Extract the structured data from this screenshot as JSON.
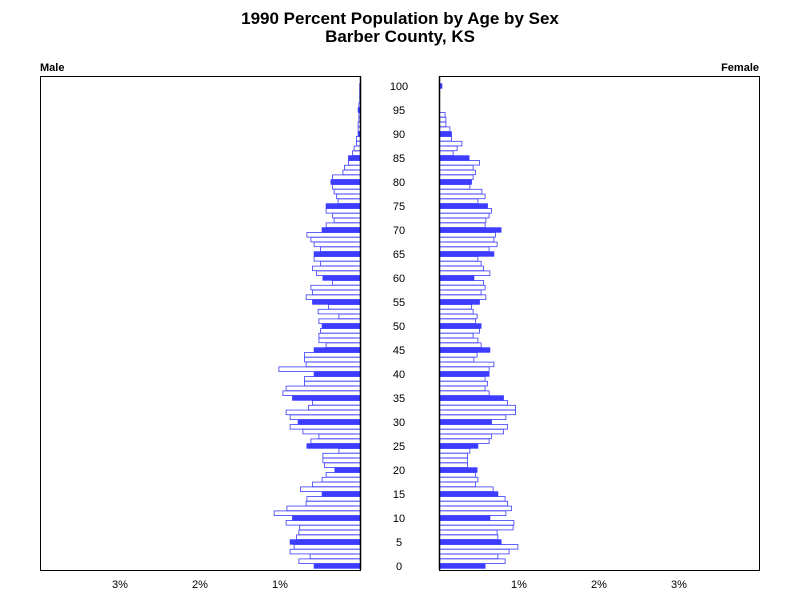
{
  "chart_data": {
    "type": "bar",
    "title": "1990 Percent Population by Age by Sex",
    "subtitle": "Barber County, KS",
    "left_label": "Male",
    "right_label": "Female",
    "age_tick_labels": [
      "0",
      "5",
      "10",
      "15",
      "20",
      "25",
      "30",
      "35",
      "40",
      "45",
      "50",
      "55",
      "60",
      "65",
      "70",
      "75",
      "80",
      "85",
      "90",
      "95",
      "100"
    ],
    "x_tick_labels": [
      "3%",
      "2%",
      "1%"
    ],
    "x_tick_values": [
      3,
      2,
      1
    ],
    "xlim": [
      0,
      4
    ],
    "highlight_every": 5,
    "bar_fill_highlight": "#3c3cff",
    "bar_outline": "#3c3cff",
    "series": [
      {
        "name": "Male",
        "values": [
          0.58,
          0.77,
          0.63,
          0.88,
          0.83,
          0.88,
          0.8,
          0.77,
          0.76,
          0.93,
          0.85,
          1.08,
          0.92,
          0.68,
          0.67,
          0.48,
          0.75,
          0.6,
          0.48,
          0.43,
          0.32,
          0.45,
          0.47,
          0.47,
          0.27,
          0.67,
          0.62,
          0.52,
          0.72,
          0.88,
          0.78,
          0.88,
          0.93,
          0.65,
          0.6,
          0.85,
          0.97,
          0.93,
          0.7,
          0.7,
          0.58,
          1.02,
          0.68,
          0.7,
          0.7,
          0.58,
          0.43,
          0.52,
          0.52,
          0.5,
          0.48,
          0.52,
          0.27,
          0.53,
          0.4,
          0.6,
          0.68,
          0.6,
          0.62,
          0.35,
          0.47,
          0.55,
          0.6,
          0.5,
          0.58,
          0.58,
          0.5,
          0.58,
          0.62,
          0.67,
          0.48,
          0.43,
          0.33,
          0.35,
          0.43,
          0.43,
          0.28,
          0.3,
          0.33,
          0.35,
          0.37,
          0.35,
          0.22,
          0.2,
          0.15,
          0.15,
          0.1,
          0.08,
          0.05,
          0.05,
          0.03,
          0.03,
          0.03,
          0.02,
          0.02,
          0.03,
          0.02,
          0.01,
          0.01,
          0.01,
          0.01
        ]
      },
      {
        "name": "Female",
        "values": [
          0.57,
          0.82,
          0.73,
          0.87,
          0.98,
          0.77,
          0.73,
          0.72,
          0.92,
          0.93,
          0.63,
          0.83,
          0.9,
          0.85,
          0.82,
          0.73,
          0.67,
          0.45,
          0.48,
          0.45,
          0.47,
          0.35,
          0.35,
          0.35,
          0.38,
          0.48,
          0.62,
          0.65,
          0.8,
          0.85,
          0.65,
          0.83,
          0.95,
          0.95,
          0.85,
          0.8,
          0.62,
          0.57,
          0.6,
          0.57,
          0.62,
          0.62,
          0.68,
          0.43,
          0.47,
          0.63,
          0.52,
          0.48,
          0.42,
          0.5,
          0.52,
          0.45,
          0.47,
          0.42,
          0.4,
          0.5,
          0.58,
          0.52,
          0.57,
          0.55,
          0.43,
          0.63,
          0.55,
          0.52,
          0.48,
          0.68,
          0.62,
          0.72,
          0.68,
          0.7,
          0.77,
          0.57,
          0.58,
          0.62,
          0.65,
          0.6,
          0.48,
          0.57,
          0.53,
          0.38,
          0.4,
          0.42,
          0.45,
          0.42,
          0.5,
          0.37,
          0.17,
          0.22,
          0.28,
          0.15,
          0.15,
          0.13,
          0.08,
          0.08,
          0.07,
          0.0,
          0.0,
          0.0,
          0.0,
          0.0,
          0.03
        ]
      }
    ]
  }
}
